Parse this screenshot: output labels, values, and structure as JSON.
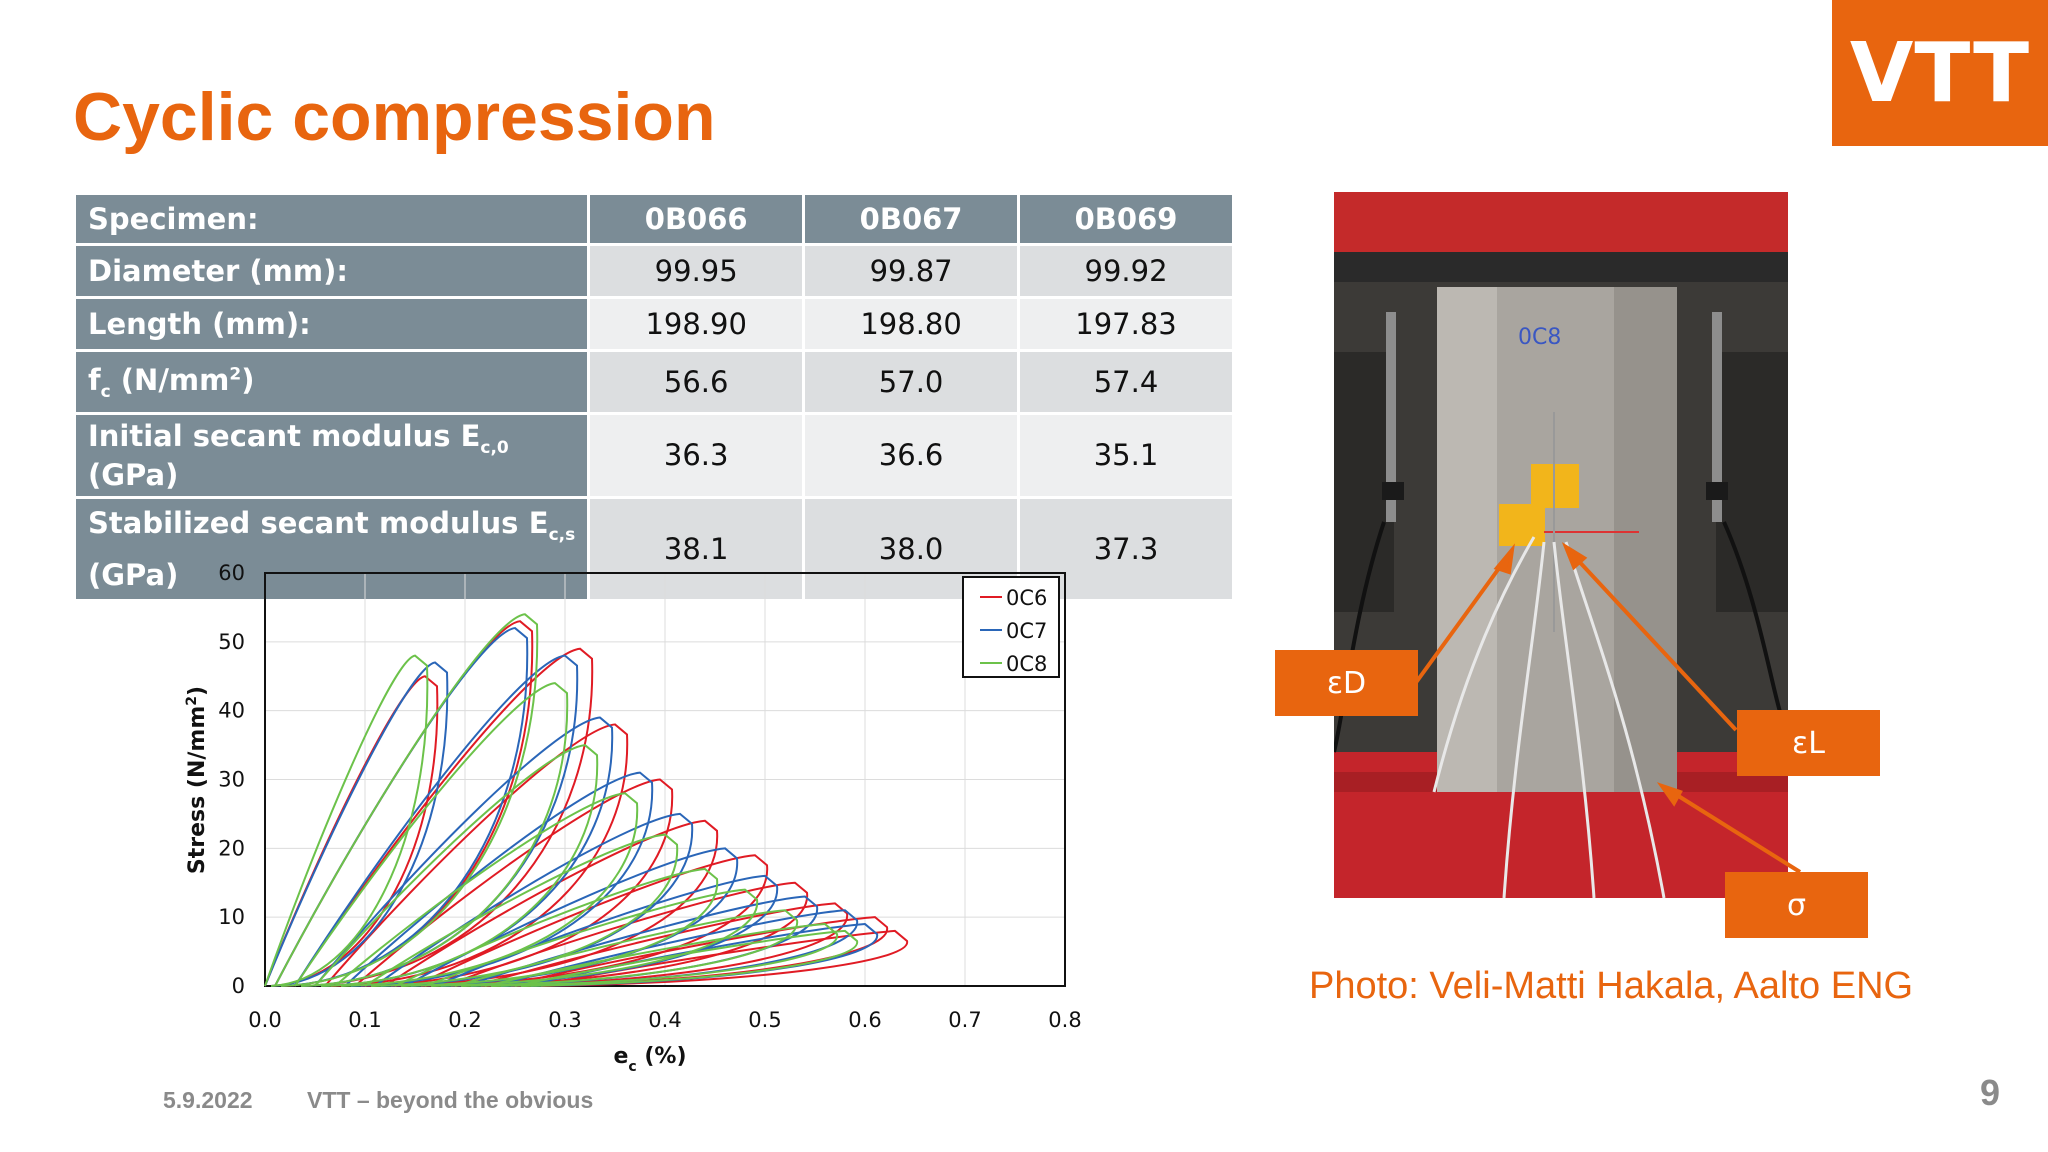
{
  "logo": {
    "text": "VTT"
  },
  "title": "Cyclic compression",
  "table": {
    "header": {
      "label": "Specimen:",
      "specimens": [
        "0B066",
        "0B067",
        "0B069"
      ]
    },
    "rows": [
      {
        "label": "Diameter (mm):",
        "values": [
          "99.95",
          "99.87",
          "99.92"
        ]
      },
      {
        "label": "Length (mm):",
        "values": [
          "198.90",
          "198.80",
          "197.83"
        ]
      },
      {
        "label_main": "f",
        "label_sub": "c",
        "label_rest": " (N/mm",
        "label_sup": "2",
        "label_end": ")",
        "values": [
          "56.6",
          "57.0",
          "57.4"
        ]
      },
      {
        "label_main": "Initial secant modulus E",
        "label_sub": "c,0",
        "label_end": " (GPa)",
        "values": [
          "36.3",
          "36.6",
          "35.1"
        ]
      },
      {
        "label_words": [
          "Stabilized",
          "secant",
          "modulus",
          "E"
        ],
        "label_sub": "c,s",
        "label_end": "(GPa)",
        "values": [
          "38.1",
          "38.0",
          "37.3"
        ]
      }
    ]
  },
  "chart_data": {
    "type": "line",
    "title": "",
    "xlabel_main": "e",
    "xlabel_sub": "c",
    "xlabel_end": " (%)",
    "ylabel_main": "Stress (N/mm",
    "ylabel_sup": "2",
    "ylabel_end": ")",
    "xlim": [
      0,
      0.8
    ],
    "ylim": [
      0,
      60
    ],
    "x_ticks": [
      "0.0",
      "0.1",
      "0.2",
      "0.3",
      "0.4",
      "0.5",
      "0.6",
      "0.7",
      "0.8"
    ],
    "y_ticks": [
      "0",
      "10",
      "20",
      "30",
      "40",
      "50",
      "60"
    ],
    "grid": true,
    "legend_position": "top-right",
    "series": [
      {
        "name": "0C6",
        "color": "#e01b24",
        "cycles": [
          {
            "start": 0.0,
            "peak_x": 0.16,
            "peak_y": 45
          },
          {
            "start": 0.01,
            "peak_x": 0.255,
            "peak_y": 53
          },
          {
            "start": 0.03,
            "peak_x": 0.315,
            "peak_y": 49
          },
          {
            "start": 0.06,
            "peak_x": 0.35,
            "peak_y": 38
          },
          {
            "start": 0.09,
            "peak_x": 0.395,
            "peak_y": 30
          },
          {
            "start": 0.12,
            "peak_x": 0.44,
            "peak_y": 24
          },
          {
            "start": 0.15,
            "peak_x": 0.49,
            "peak_y": 19
          },
          {
            "start": 0.18,
            "peak_x": 0.53,
            "peak_y": 15
          },
          {
            "start": 0.21,
            "peak_x": 0.57,
            "peak_y": 12
          },
          {
            "start": 0.24,
            "peak_x": 0.61,
            "peak_y": 10
          },
          {
            "start": 0.27,
            "peak_x": 0.63,
            "peak_y": 8
          }
        ]
      },
      {
        "name": "0C7",
        "color": "#2a66b8",
        "cycles": [
          {
            "start": 0.0,
            "peak_x": 0.17,
            "peak_y": 47
          },
          {
            "start": 0.01,
            "peak_x": 0.25,
            "peak_y": 52
          },
          {
            "start": 0.03,
            "peak_x": 0.3,
            "peak_y": 48
          },
          {
            "start": 0.05,
            "peak_x": 0.335,
            "peak_y": 39
          },
          {
            "start": 0.08,
            "peak_x": 0.375,
            "peak_y": 31
          },
          {
            "start": 0.11,
            "peak_x": 0.415,
            "peak_y": 25
          },
          {
            "start": 0.14,
            "peak_x": 0.46,
            "peak_y": 20
          },
          {
            "start": 0.17,
            "peak_x": 0.5,
            "peak_y": 16
          },
          {
            "start": 0.2,
            "peak_x": 0.54,
            "peak_y": 13
          },
          {
            "start": 0.23,
            "peak_x": 0.58,
            "peak_y": 11
          },
          {
            "start": 0.26,
            "peak_x": 0.6,
            "peak_y": 9
          }
        ]
      },
      {
        "name": "0C8",
        "color": "#6cc24a",
        "cycles": [
          {
            "start": 0.0,
            "peak_x": 0.15,
            "peak_y": 48
          },
          {
            "start": 0.01,
            "peak_x": 0.26,
            "peak_y": 54
          },
          {
            "start": 0.03,
            "peak_x": 0.29,
            "peak_y": 44
          },
          {
            "start": 0.05,
            "peak_x": 0.32,
            "peak_y": 35
          },
          {
            "start": 0.07,
            "peak_x": 0.36,
            "peak_y": 28
          },
          {
            "start": 0.1,
            "peak_x": 0.4,
            "peak_y": 22
          },
          {
            "start": 0.13,
            "peak_x": 0.44,
            "peak_y": 17
          },
          {
            "start": 0.16,
            "peak_x": 0.48,
            "peak_y": 14
          },
          {
            "start": 0.19,
            "peak_x": 0.52,
            "peak_y": 11
          },
          {
            "start": 0.22,
            "peak_x": 0.56,
            "peak_y": 9
          },
          {
            "start": 0.25,
            "peak_x": 0.58,
            "peak_y": 8
          }
        ]
      }
    ]
  },
  "photo": {
    "callouts": [
      "εD",
      "εL",
      "σ"
    ],
    "specimen_mark": "0C8",
    "credit": "Photo: Veli-Matti Hakala, Aalto ENG"
  },
  "footer": {
    "date": "5.9.2022",
    "tagline": "VTT – beyond the obvious",
    "page": "9"
  },
  "colors": {
    "accent": "#e8650f",
    "table_header": "#7b8c96"
  }
}
